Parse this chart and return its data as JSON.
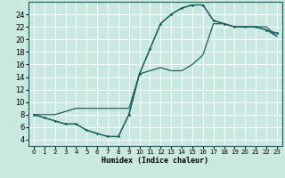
{
  "xlabel": "Humidex (Indice chaleur)",
  "bg_color": "#c8e8e0",
  "grid_color": "#ffffff",
  "line_color": "#1a6060",
  "xlim": [
    -0.5,
    23.5
  ],
  "ylim": [
    3,
    26
  ],
  "xticks": [
    0,
    1,
    2,
    3,
    4,
    5,
    6,
    7,
    8,
    9,
    10,
    11,
    12,
    13,
    14,
    15,
    16,
    17,
    18,
    19,
    20,
    21,
    22,
    23
  ],
  "yticks": [
    4,
    6,
    8,
    10,
    12,
    14,
    16,
    18,
    20,
    22,
    24
  ],
  "curve1_x": [
    0,
    1,
    2,
    3,
    4,
    5,
    6,
    7,
    8,
    9,
    10,
    11,
    12,
    13,
    14,
    15,
    16,
    17,
    18,
    19,
    20,
    21,
    22,
    23
  ],
  "curve1_y": [
    8,
    7.5,
    7,
    6.5,
    6.5,
    5.5,
    5.0,
    4.5,
    4.5,
    8.0,
    14.5,
    18.5,
    22.5,
    24,
    25,
    25.5,
    25.5,
    23,
    22.5,
    22,
    22,
    22,
    21.5,
    21
  ],
  "curve2_x": [
    0,
    1,
    2,
    3,
    4,
    5,
    6,
    7,
    8,
    9,
    10,
    11,
    12,
    13,
    14,
    15,
    16,
    17,
    18,
    19,
    20,
    21,
    22,
    23
  ],
  "curve2_y": [
    8,
    7.5,
    7,
    6.5,
    6.5,
    5.5,
    5.0,
    4.5,
    4.5,
    8.0,
    14.5,
    18.5,
    22.5,
    24,
    25,
    25.5,
    25.5,
    23,
    22.5,
    22,
    22,
    22,
    21.5,
    20.5
  ],
  "curve3_x": [
    0,
    1,
    2,
    3,
    4,
    5,
    6,
    7,
    8,
    9,
    10,
    11,
    12,
    13,
    14,
    15,
    16,
    17,
    18,
    19,
    20,
    21,
    22,
    23
  ],
  "curve3_y": [
    8,
    8,
    8,
    8.5,
    9,
    9,
    9,
    9,
    9,
    9,
    14.5,
    15,
    15.5,
    15,
    15,
    16,
    17.5,
    22.5,
    22.5,
    22,
    22,
    22,
    22,
    20.5
  ]
}
